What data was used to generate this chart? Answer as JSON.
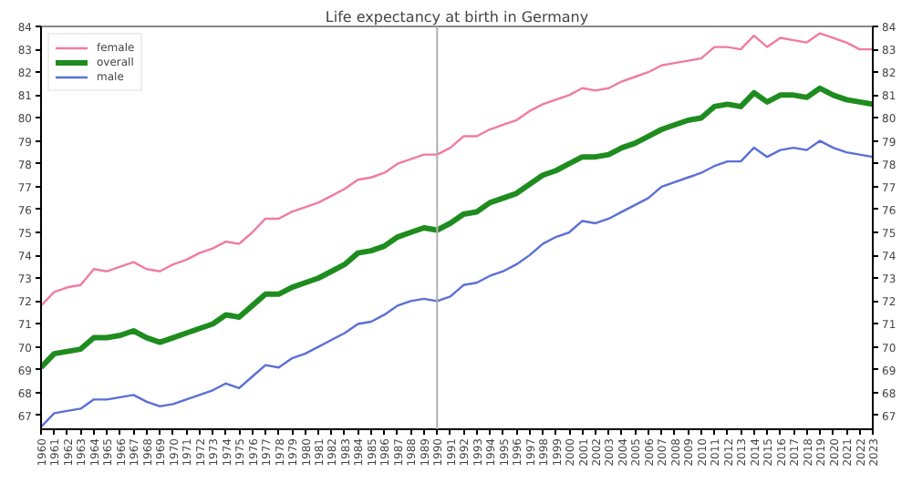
{
  "chart_data": {
    "type": "line",
    "title": "Life expectancy at birth in Germany",
    "x": [
      1960,
      1961,
      1962,
      1963,
      1964,
      1965,
      1966,
      1967,
      1968,
      1969,
      1970,
      1971,
      1972,
      1973,
      1974,
      1975,
      1976,
      1977,
      1978,
      1979,
      1980,
      1981,
      1982,
      1983,
      1984,
      1985,
      1986,
      1987,
      1988,
      1989,
      1990,
      1991,
      1992,
      1993,
      1994,
      1995,
      1996,
      1997,
      1998,
      1999,
      2000,
      2001,
      2002,
      2003,
      2004,
      2005,
      2006,
      2007,
      2008,
      2009,
      2010,
      2011,
      2012,
      2013,
      2014,
      2015,
      2016,
      2017,
      2018,
      2019,
      2020,
      2021,
      2022,
      2023
    ],
    "series": [
      {
        "name": "female",
        "color": "#f07ca0",
        "values": [
          71.8,
          72.4,
          72.6,
          72.7,
          73.4,
          73.3,
          73.5,
          73.7,
          73.4,
          73.3,
          73.6,
          73.8,
          74.1,
          74.3,
          74.6,
          74.5,
          75.0,
          75.6,
          75.6,
          75.9,
          76.1,
          76.3,
          76.6,
          76.9,
          77.3,
          77.4,
          77.6,
          78.0,
          78.2,
          78.4,
          78.4,
          78.7,
          79.2,
          79.2,
          79.5,
          79.7,
          79.9,
          80.3,
          80.6,
          80.8,
          81.0,
          81.3,
          81.2,
          81.3,
          81.6,
          81.8,
          82.0,
          82.3,
          82.4,
          82.5,
          82.6,
          83.1,
          83.1,
          83.0,
          83.6,
          83.1,
          83.5,
          83.4,
          83.3,
          83.7,
          83.5,
          83.3,
          83.0,
          83.0
        ]
      },
      {
        "name": "overall",
        "color": "#1e8c1e",
        "values": [
          69.1,
          69.7,
          69.8,
          69.9,
          70.4,
          70.4,
          70.5,
          70.7,
          70.4,
          70.2,
          70.4,
          70.6,
          70.8,
          71.0,
          71.4,
          71.3,
          71.8,
          72.3,
          72.3,
          72.6,
          72.8,
          73.0,
          73.3,
          73.6,
          74.1,
          74.2,
          74.4,
          74.8,
          75.0,
          75.2,
          75.1,
          75.4,
          75.8,
          75.9,
          76.3,
          76.5,
          76.7,
          77.1,
          77.5,
          77.7,
          78.0,
          78.3,
          78.3,
          78.4,
          78.7,
          78.9,
          79.2,
          79.5,
          79.7,
          79.9,
          80.0,
          80.5,
          80.6,
          80.5,
          81.1,
          80.7,
          81.0,
          81.0,
          80.9,
          81.3,
          81.0,
          80.8,
          80.7,
          80.6
        ]
      },
      {
        "name": "male",
        "color": "#5a6fd6",
        "values": [
          66.5,
          67.1,
          67.2,
          67.3,
          67.7,
          67.7,
          67.8,
          67.9,
          67.6,
          67.4,
          67.5,
          67.7,
          67.9,
          68.1,
          68.4,
          68.2,
          68.7,
          69.2,
          69.1,
          69.5,
          69.7,
          70.0,
          70.3,
          70.6,
          71.0,
          71.1,
          71.4,
          71.8,
          72.0,
          72.1,
          72.0,
          72.2,
          72.7,
          72.8,
          73.1,
          73.3,
          73.6,
          74.0,
          74.5,
          74.8,
          75.0,
          75.5,
          75.4,
          75.6,
          75.9,
          76.2,
          76.5,
          77.0,
          77.2,
          77.4,
          77.6,
          77.9,
          78.1,
          78.1,
          78.7,
          78.3,
          78.6,
          78.7,
          78.6,
          79.0,
          78.7,
          78.5,
          78.4,
          78.3
        ]
      }
    ],
    "xlim": [
      1960,
      2023
    ],
    "xticks": [
      1960,
      1961,
      1962,
      1963,
      1964,
      1965,
      1966,
      1967,
      1968,
      1969,
      1970,
      1971,
      1972,
      1973,
      1974,
      1975,
      1976,
      1977,
      1978,
      1979,
      1980,
      1981,
      1982,
      1983,
      1984,
      1985,
      1986,
      1987,
      1988,
      1989,
      1990,
      1991,
      1992,
      1993,
      1994,
      1995,
      1996,
      1997,
      1998,
      1999,
      2000,
      2001,
      2002,
      2003,
      2004,
      2005,
      2006,
      2007,
      2008,
      2009,
      2010,
      2011,
      2012,
      2013,
      2014,
      2015,
      2016,
      2017,
      2018,
      2019,
      2020,
      2021,
      2022,
      2023
    ],
    "ylim": [
      66.4,
      84
    ],
    "yticks": [
      67,
      68,
      69,
      70,
      71,
      72,
      73,
      74,
      75,
      76,
      77,
      78,
      79,
      80,
      81,
      82,
      83,
      84
    ],
    "y2lim": [
      66.4,
      84
    ],
    "y2ticks": [
      67,
      68,
      69,
      70,
      71,
      72,
      73,
      74,
      75,
      76,
      77,
      78,
      79,
      80,
      81,
      82,
      83,
      84
    ],
    "ref_lines": [
      {
        "axis": "x",
        "value": 1990,
        "label": null,
        "color": "#b0b0b0"
      }
    ],
    "grid": false,
    "legend": "top left",
    "marker": "none",
    "line_style": "solid"
  }
}
